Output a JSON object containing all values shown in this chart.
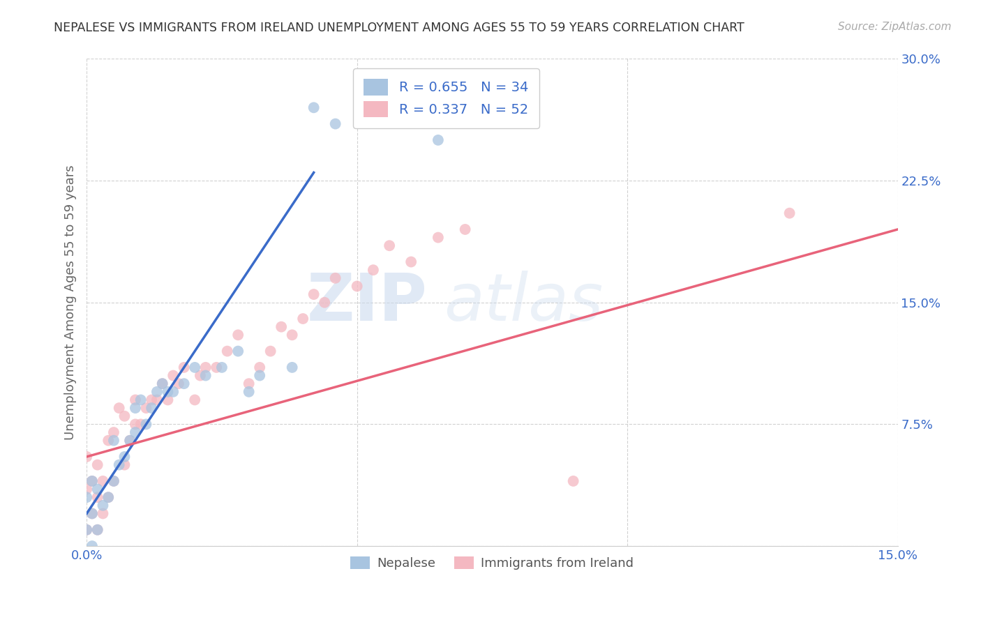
{
  "title": "NEPALESE VS IMMIGRANTS FROM IRELAND UNEMPLOYMENT AMONG AGES 55 TO 59 YEARS CORRELATION CHART",
  "source": "Source: ZipAtlas.com",
  "ylabel": "Unemployment Among Ages 55 to 59 years",
  "xlim": [
    0.0,
    0.15
  ],
  "ylim": [
    0.0,
    0.3
  ],
  "xticks": [
    0.0,
    0.05,
    0.1,
    0.15
  ],
  "xtick_labels": [
    "0.0%",
    "",
    "",
    "15.0%"
  ],
  "yticks": [
    0.0,
    0.075,
    0.15,
    0.225,
    0.3
  ],
  "ytick_labels": [
    "",
    "7.5%",
    "15.0%",
    "22.5%",
    "30.0%"
  ],
  "nepalese_color": "#a8c4e0",
  "ireland_color": "#f4b8c1",
  "nepalese_line_color": "#3a6bc9",
  "ireland_line_color": "#e8637a",
  "R_nepalese": 0.655,
  "N_nepalese": 34,
  "R_ireland": 0.337,
  "N_ireland": 52,
  "legend_label_nepalese": "Nepalese",
  "legend_label_ireland": "Immigrants from Ireland",
  "watermark_zip": "ZIP",
  "watermark_atlas": "atlas",
  "background_color": "#ffffff",
  "nepalese_x": [
    0.0,
    0.0,
    0.001,
    0.001,
    0.001,
    0.002,
    0.002,
    0.003,
    0.004,
    0.005,
    0.005,
    0.006,
    0.007,
    0.008,
    0.009,
    0.009,
    0.01,
    0.011,
    0.012,
    0.013,
    0.014,
    0.015,
    0.016,
    0.018,
    0.02,
    0.022,
    0.025,
    0.028,
    0.03,
    0.032,
    0.038,
    0.042,
    0.046,
    0.065
  ],
  "nepalese_y": [
    0.01,
    0.03,
    0.0,
    0.02,
    0.04,
    0.01,
    0.035,
    0.025,
    0.03,
    0.04,
    0.065,
    0.05,
    0.055,
    0.065,
    0.085,
    0.07,
    0.09,
    0.075,
    0.085,
    0.095,
    0.1,
    0.095,
    0.095,
    0.1,
    0.11,
    0.105,
    0.11,
    0.12,
    0.095,
    0.105,
    0.11,
    0.27,
    0.26,
    0.25
  ],
  "ireland_x": [
    0.0,
    0.0,
    0.0,
    0.001,
    0.001,
    0.002,
    0.002,
    0.002,
    0.003,
    0.003,
    0.004,
    0.004,
    0.005,
    0.005,
    0.006,
    0.007,
    0.007,
    0.008,
    0.009,
    0.009,
    0.01,
    0.011,
    0.012,
    0.013,
    0.014,
    0.015,
    0.016,
    0.017,
    0.018,
    0.02,
    0.021,
    0.022,
    0.024,
    0.026,
    0.028,
    0.03,
    0.032,
    0.034,
    0.036,
    0.038,
    0.04,
    0.042,
    0.044,
    0.046,
    0.05,
    0.053,
    0.056,
    0.06,
    0.065,
    0.07,
    0.09,
    0.13
  ],
  "ireland_y": [
    0.01,
    0.035,
    0.055,
    0.02,
    0.04,
    0.01,
    0.03,
    0.05,
    0.02,
    0.04,
    0.03,
    0.065,
    0.04,
    0.07,
    0.085,
    0.05,
    0.08,
    0.065,
    0.075,
    0.09,
    0.075,
    0.085,
    0.09,
    0.09,
    0.1,
    0.09,
    0.105,
    0.1,
    0.11,
    0.09,
    0.105,
    0.11,
    0.11,
    0.12,
    0.13,
    0.1,
    0.11,
    0.12,
    0.135,
    0.13,
    0.14,
    0.155,
    0.15,
    0.165,
    0.16,
    0.17,
    0.185,
    0.175,
    0.19,
    0.195,
    0.04,
    0.205
  ],
  "nep_line_x": [
    0.0,
    0.042
  ],
  "nep_line_y": [
    0.02,
    0.23
  ],
  "ire_line_x": [
    0.0,
    0.15
  ],
  "ire_line_y": [
    0.055,
    0.195
  ]
}
